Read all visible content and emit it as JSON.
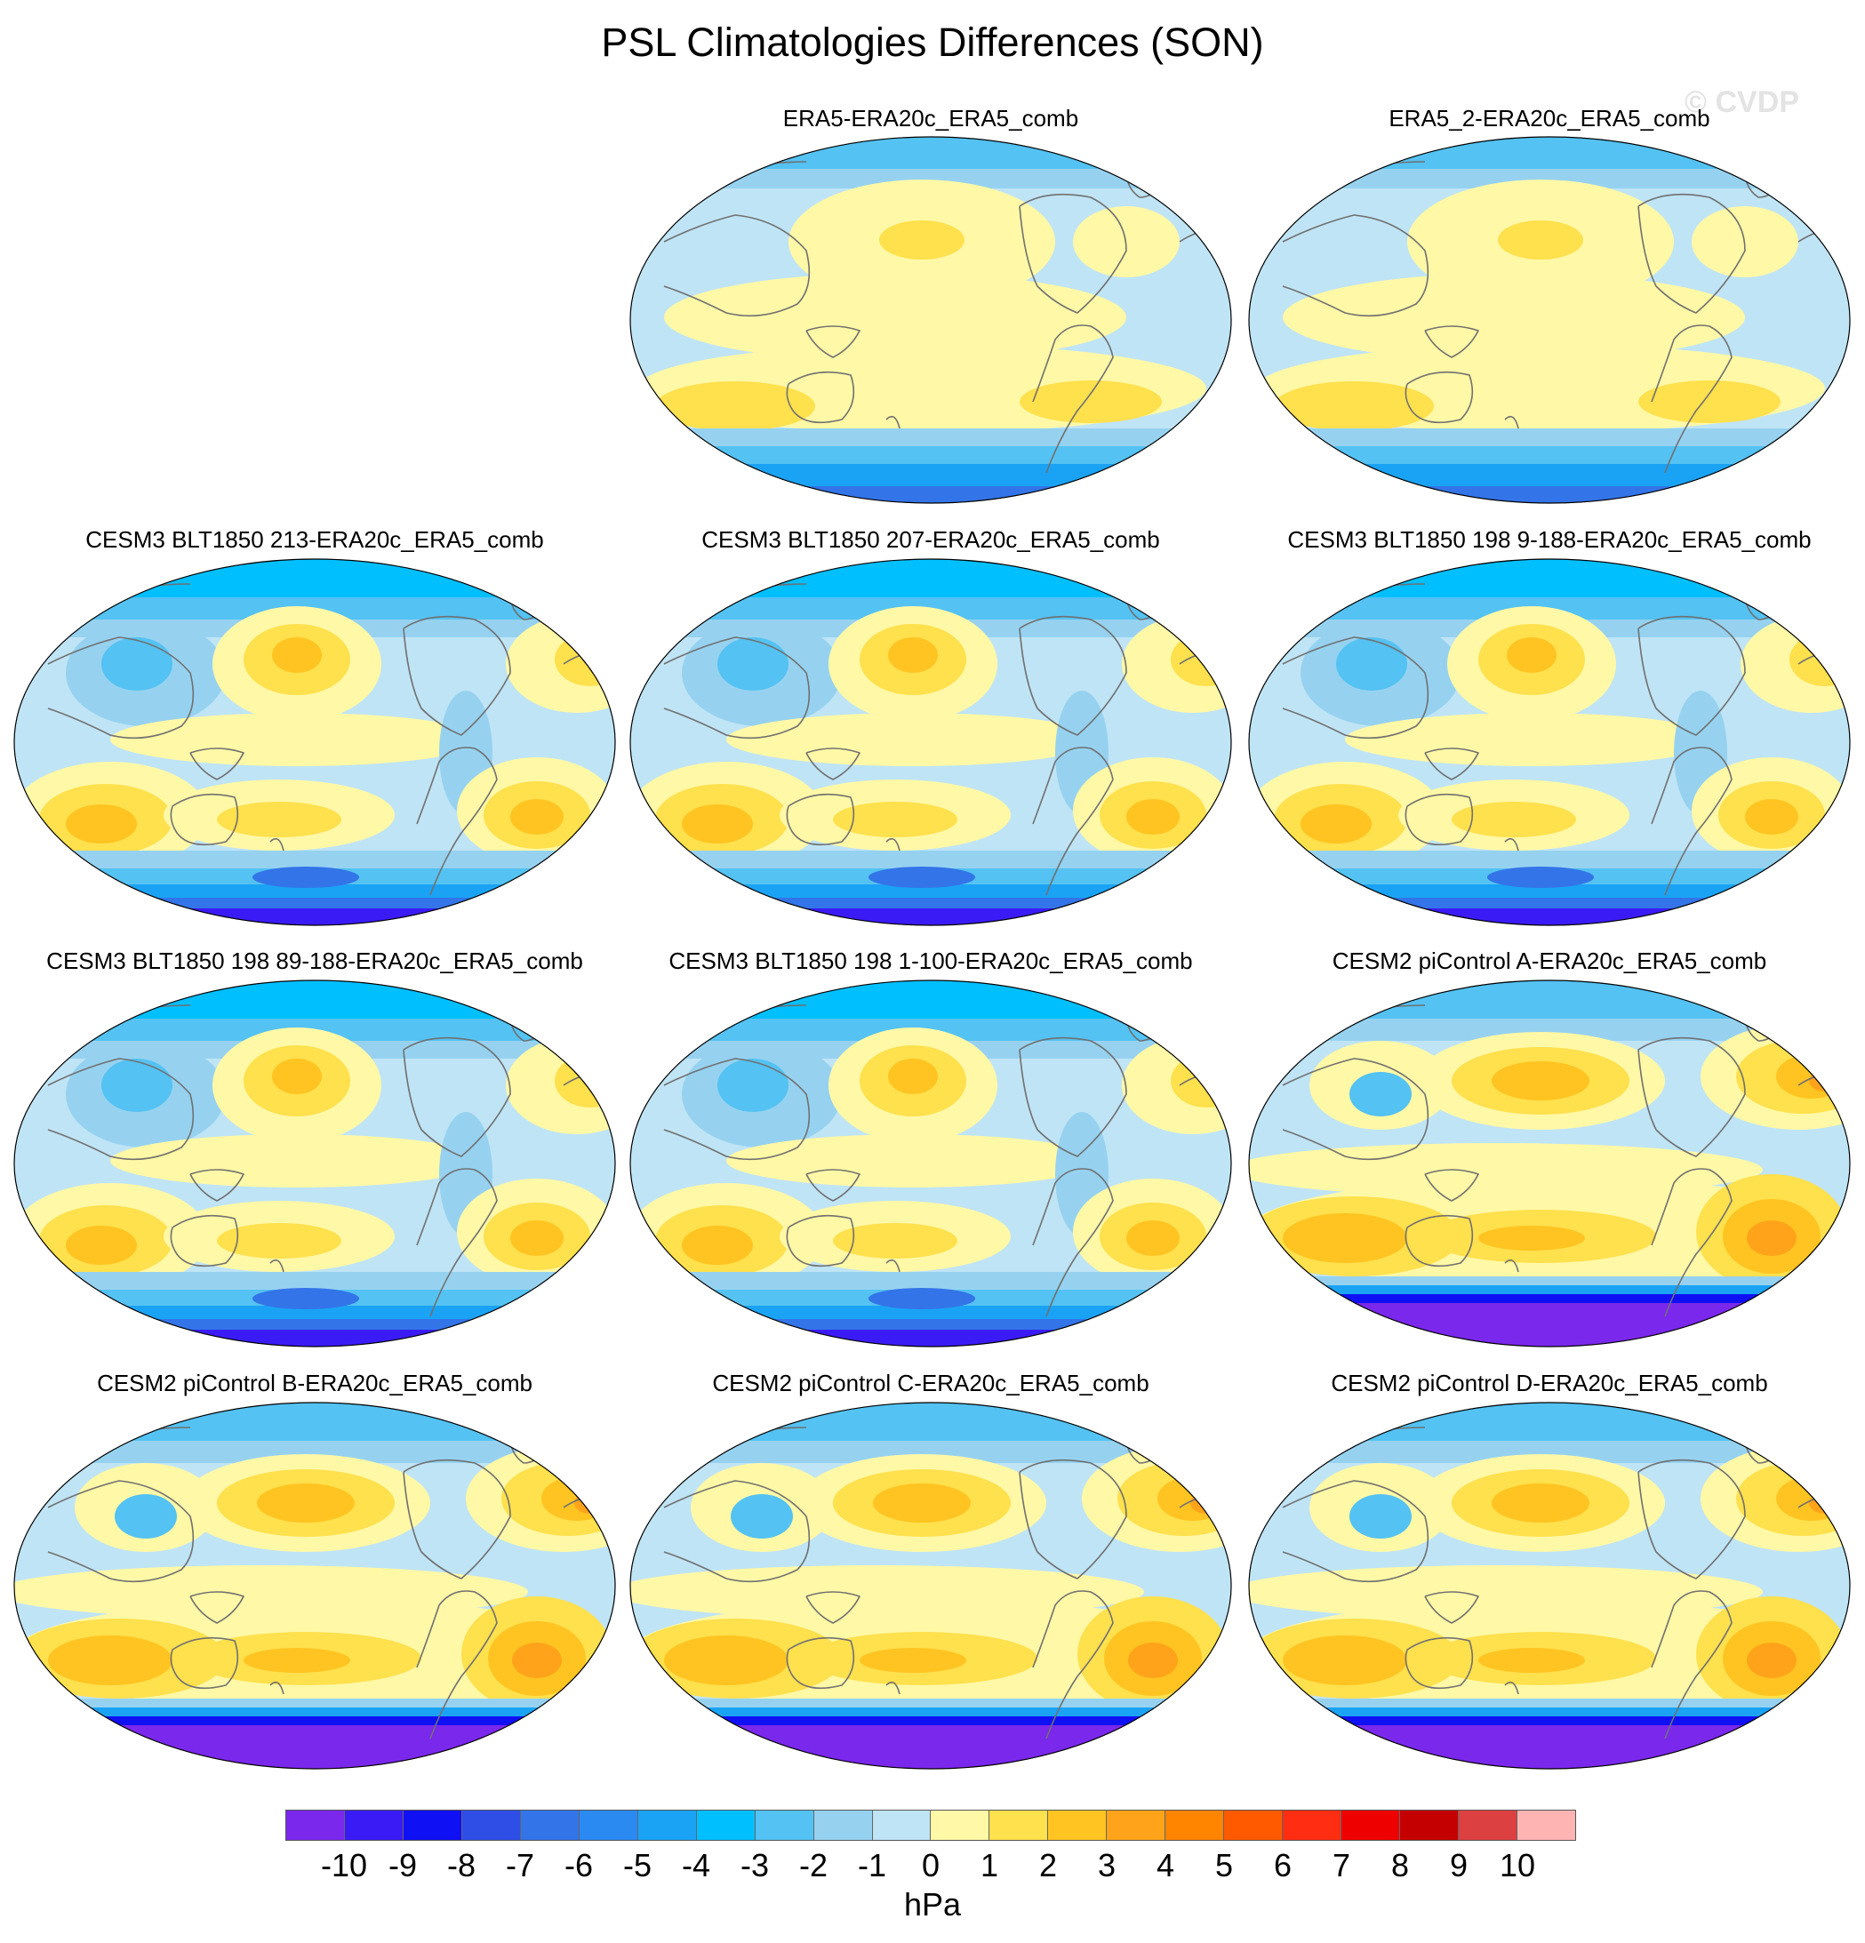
{
  "figure": {
    "title": "PSL Climatologies Differences (SON)",
    "watermark": "© CVDP",
    "units": "hPa"
  },
  "colorbar": {
    "colors": [
      "#7b28ed",
      "#3b1bf5",
      "#1010f5",
      "#2f4ee6",
      "#3374e8",
      "#2b8af2",
      "#1aa3f5",
      "#00bfff",
      "#54c2f2",
      "#96d2f0",
      "#bfe4f5",
      "#fff8a6",
      "#ffe04d",
      "#ffc421",
      "#ffa41a",
      "#ff8400",
      "#ff5a00",
      "#ff2e12",
      "#ee0000",
      "#c40000",
      "#dc4040",
      "#ffb4b4"
    ],
    "tick_labels": [
      "-10",
      "-9",
      "-8",
      "-7",
      "-6",
      "-5",
      "-4",
      "-3",
      "-2",
      "-1",
      "0",
      "1",
      "2",
      "3",
      "4",
      "5",
      "6",
      "7",
      "8",
      "9",
      "10"
    ]
  },
  "panels": [
    {
      "title": "ERA5-ERA20c_ERA5_comb",
      "style": "obs"
    },
    {
      "title": "ERA5_2-ERA20c_ERA5_comb",
      "style": "obs"
    },
    {
      "title": "CESM3 BLT1850 213-ERA20c_ERA5_comb",
      "style": "cesm3"
    },
    {
      "title": "CESM3 BLT1850 207-ERA20c_ERA5_comb",
      "style": "cesm3"
    },
    {
      "title": "CESM3 BLT1850 198 9-188-ERA20c_ERA5_comb",
      "style": "cesm3"
    },
    {
      "title": "CESM3 BLT1850 198 89-188-ERA20c_ERA5_comb",
      "style": "cesm3"
    },
    {
      "title": "CESM3 BLT1850 198 1-100-ERA20c_ERA5_comb",
      "style": "cesm3"
    },
    {
      "title": "CESM2 piControl A-ERA20c_ERA5_comb",
      "style": "cesm2"
    },
    {
      "title": "CESM2 piControl B-ERA20c_ERA5_comb",
      "style": "cesm2"
    },
    {
      "title": "CESM2 piControl C-ERA20c_ERA5_comb",
      "style": "cesm2"
    },
    {
      "title": "CESM2 piControl D-ERA20c_ERA5_comb",
      "style": "cesm2"
    }
  ]
}
